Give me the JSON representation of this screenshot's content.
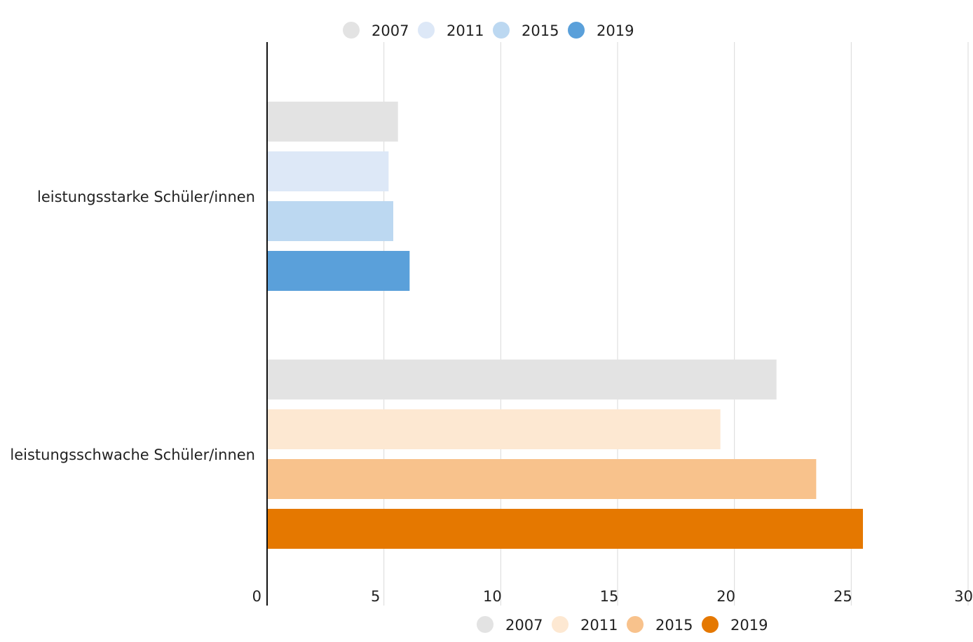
{
  "chart_data": {
    "type": "bar",
    "orientation": "horizontal",
    "categories": [
      "leistungsstarke Schüler/innen",
      "leistungsschwache Schüler/innen"
    ],
    "series": [
      {
        "name": "2007",
        "values": [
          5.6,
          21.8
        ]
      },
      {
        "name": "2011",
        "values": [
          5.2,
          19.4
        ]
      },
      {
        "name": "2015",
        "values": [
          5.4,
          23.5
        ]
      },
      {
        "name": "2019",
        "values": [
          6.1,
          25.5
        ]
      }
    ],
    "legends": [
      {
        "position": "top",
        "entries": [
          {
            "label": "2007",
            "color": "#e3e3e3"
          },
          {
            "label": "2011",
            "color": "#dde8f7"
          },
          {
            "label": "2015",
            "color": "#bcd8f1"
          },
          {
            "label": "2019",
            "color": "#5aa0da"
          }
        ]
      },
      {
        "position": "bottom",
        "entries": [
          {
            "label": "2007",
            "color": "#e3e3e3"
          },
          {
            "label": "2011",
            "color": "#fde8d2"
          },
          {
            "label": "2015",
            "color": "#f8c28c"
          },
          {
            "label": "2019",
            "color": "#e57800"
          }
        ]
      }
    ],
    "category_colors": [
      [
        "#e3e3e3",
        "#dde8f7",
        "#bcd8f1",
        "#5aa0da"
      ],
      [
        "#e3e3e3",
        "#fde8d2",
        "#f8c28c",
        "#e57800"
      ]
    ],
    "xlim": [
      0,
      30
    ],
    "xticks": [
      "0",
      "5",
      "10",
      "15",
      "20",
      "25",
      "30"
    ],
    "grid": true,
    "title": "",
    "xlabel": "",
    "ylabel": ""
  }
}
